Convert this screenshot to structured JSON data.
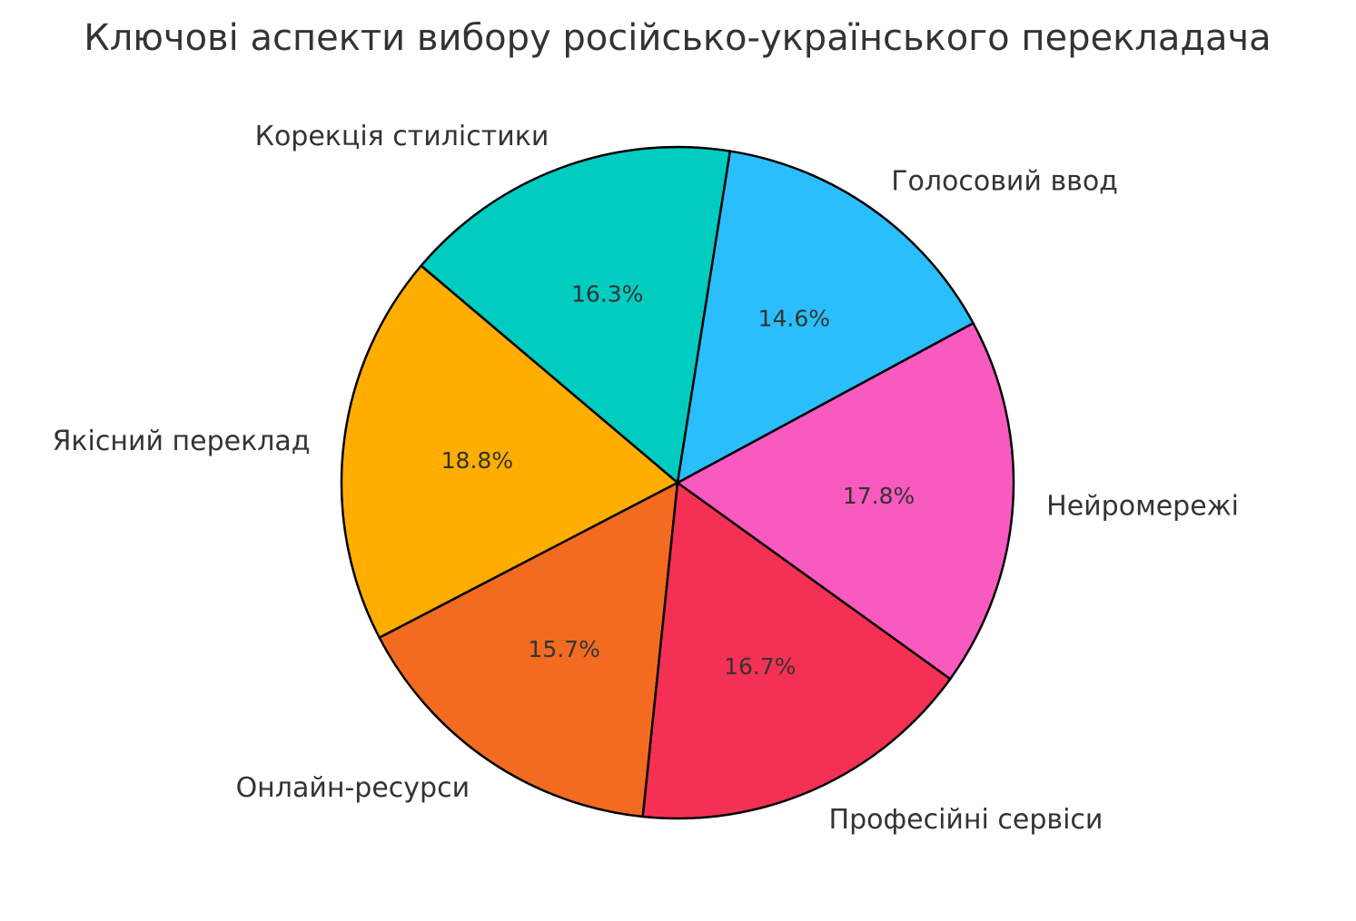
{
  "chart_data": {
    "type": "pie",
    "title": "Ключові аспекти вибору російсько-українського перекладача",
    "start_angle_deg": 81,
    "direction": "counterclockwise",
    "slices": [
      {
        "label": "Корекція стилістики",
        "value": 16.3,
        "pct_text": "16.3%",
        "color": "#00CCC0"
      },
      {
        "label": "Якісний переклад",
        "value": 18.8,
        "pct_text": "18.8%",
        "color": "#FFAE00"
      },
      {
        "label": "Онлайн-ресурси",
        "value": 15.7,
        "pct_text": "15.7%",
        "color": "#F26B21"
      },
      {
        "label": "Професійні сервіси",
        "value": 16.7,
        "pct_text": "16.7%",
        "color": "#F53055"
      },
      {
        "label": "Нейромережі",
        "value": 17.8,
        "pct_text": "17.8%",
        "color": "#F85AC0"
      },
      {
        "label": "Голосовий ввод",
        "value": 14.6,
        "pct_text": "14.6%",
        "color": "#2BBEFD"
      }
    ]
  }
}
